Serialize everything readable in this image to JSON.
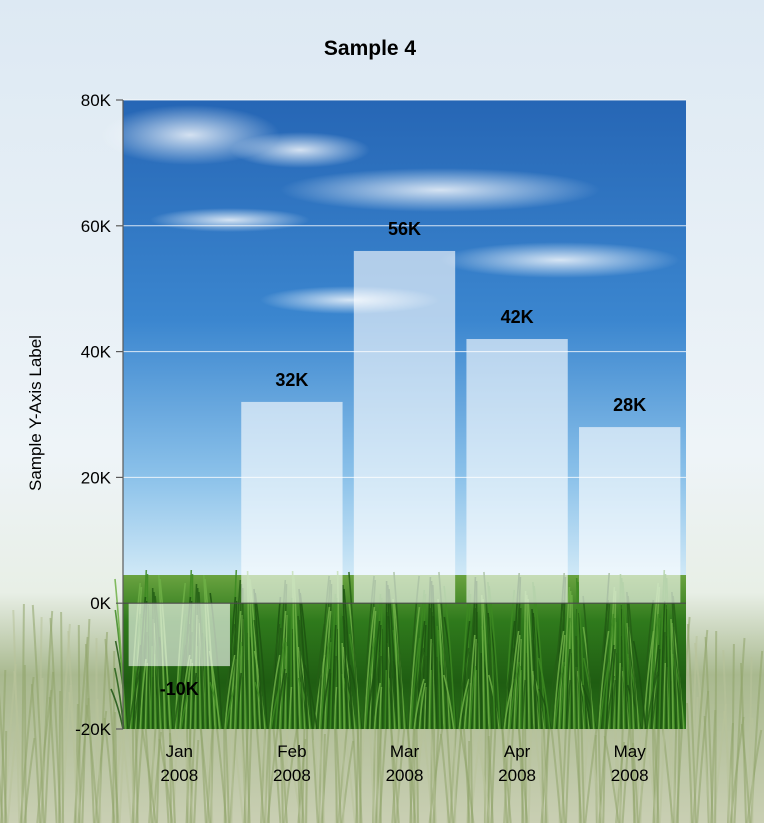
{
  "chart_data": {
    "type": "bar",
    "title": "Sample 4",
    "xlabel": "",
    "ylabel": "Sample Y-Axis Label",
    "categories": [
      [
        "Jan",
        "2008"
      ],
      [
        "Feb",
        "2008"
      ],
      [
        "Mar",
        "2008"
      ],
      [
        "Apr",
        "2008"
      ],
      [
        "May",
        "2008"
      ]
    ],
    "values": [
      -10000,
      32000,
      56000,
      42000,
      28000
    ],
    "data_labels": [
      "-10K",
      "32K",
      "56K",
      "42K",
      "28K"
    ],
    "ylim": [
      -20000,
      80000
    ],
    "yticks": [
      -20000,
      0,
      20000,
      40000,
      60000,
      80000
    ],
    "ytick_labels": [
      "-20K",
      "0K",
      "20K",
      "40K",
      "60K",
      "80K"
    ],
    "grid": true,
    "legend": "none",
    "colors": {
      "bar_fill": "#ffffff",
      "grid": "#ffffff",
      "axis": "#5a5a5a",
      "text": "#000000",
      "sky_top": "#1f5fb0",
      "sky_bottom": "#cfe6f7",
      "grass": "#2f7a1c"
    }
  }
}
